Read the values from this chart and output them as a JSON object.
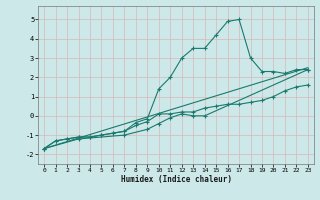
{
  "xlabel": "Humidex (Indice chaleur)",
  "bg_color": "#cce8e8",
  "grid_color": "#aacccc",
  "line_color": "#1a7a6e",
  "xlim": [
    -0.5,
    23.5
  ],
  "ylim": [
    -2.5,
    5.7
  ],
  "xticks": [
    0,
    1,
    2,
    3,
    4,
    5,
    6,
    7,
    8,
    9,
    10,
    11,
    12,
    13,
    14,
    15,
    16,
    17,
    18,
    19,
    20,
    21,
    22,
    23
  ],
  "yticks": [
    -2,
    -1,
    0,
    1,
    2,
    3,
    4,
    5
  ],
  "series": {
    "s1": {
      "x": [
        0,
        1,
        2,
        3,
        4,
        5,
        6,
        7,
        8,
        9,
        10,
        11,
        12,
        13,
        14,
        15,
        16,
        17,
        18,
        19,
        20,
        21,
        22,
        23
      ],
      "y": [
        -1.7,
        -1.3,
        -1.2,
        -1.1,
        -1.1,
        -1.0,
        -0.9,
        -0.8,
        -0.5,
        -0.3,
        0.1,
        0.1,
        0.2,
        0.2,
        0.4,
        0.5,
        0.6,
        0.6,
        0.7,
        0.8,
        1.0,
        1.3,
        1.5,
        1.6
      ],
      "marker": true
    },
    "s2": {
      "x": [
        0,
        1,
        2,
        3,
        4,
        5,
        6,
        7,
        8,
        9,
        10,
        11,
        12,
        13,
        14,
        15,
        16,
        17,
        18,
        19,
        20,
        21,
        22,
        23
      ],
      "y": [
        -1.7,
        -1.3,
        -1.2,
        -1.1,
        -1.1,
        -1.0,
        -0.9,
        -0.8,
        -0.35,
        -0.15,
        1.4,
        2.0,
        3.0,
        3.5,
        3.5,
        4.2,
        4.9,
        5.0,
        3.0,
        2.3,
        2.3,
        2.2,
        2.4,
        2.4
      ],
      "marker": true
    },
    "s3": {
      "x": [
        0,
        3,
        7,
        9,
        10,
        11,
        12,
        13,
        14,
        23
      ],
      "y": [
        -1.7,
        -1.2,
        -1.0,
        -0.7,
        -0.4,
        -0.1,
        0.1,
        0.0,
        0.0,
        2.4
      ],
      "marker": true
    },
    "s4": {
      "x": [
        0,
        23
      ],
      "y": [
        -1.7,
        2.5
      ],
      "marker": false
    }
  }
}
